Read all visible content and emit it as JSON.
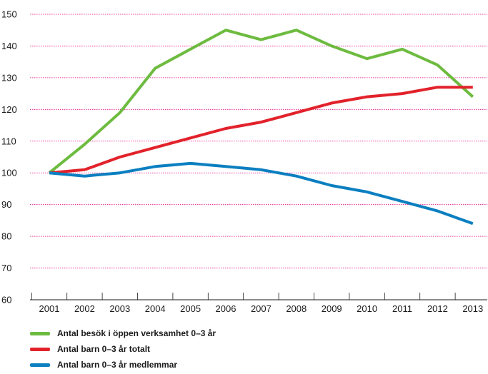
{
  "chart_data": {
    "type": "line",
    "title": "",
    "xlabel": "",
    "ylabel": "",
    "x": [
      "2001",
      "2002",
      "2003",
      "2004",
      "2005",
      "2006",
      "2007",
      "2008",
      "2009",
      "2010",
      "2011",
      "2012",
      "2013"
    ],
    "ylim": [
      60,
      150
    ],
    "yticks": [
      60,
      70,
      80,
      90,
      100,
      110,
      120,
      130,
      140,
      150
    ],
    "grid": "horizontal",
    "legend_position": "bottom-left",
    "series": [
      {
        "name": "Antal besök i öppen verksamhet 0–3 år",
        "color": "#6dbb3f",
        "values": [
          100,
          109,
          119,
          133,
          139,
          145,
          142,
          145,
          140,
          136,
          139,
          134,
          124
        ]
      },
      {
        "name": "Antal barn 0–3 år totalt",
        "color": "#e2222b",
        "values": [
          100,
          101,
          105,
          108,
          111,
          114,
          116,
          119,
          122,
          124,
          125,
          127,
          127
        ]
      },
      {
        "name": "Antal barn 0–3 år medlemmar",
        "color": "#0b7fc0",
        "values": [
          100,
          99,
          100,
          102,
          103,
          102,
          101,
          99,
          96,
          94,
          91,
          88,
          84
        ]
      }
    ]
  }
}
